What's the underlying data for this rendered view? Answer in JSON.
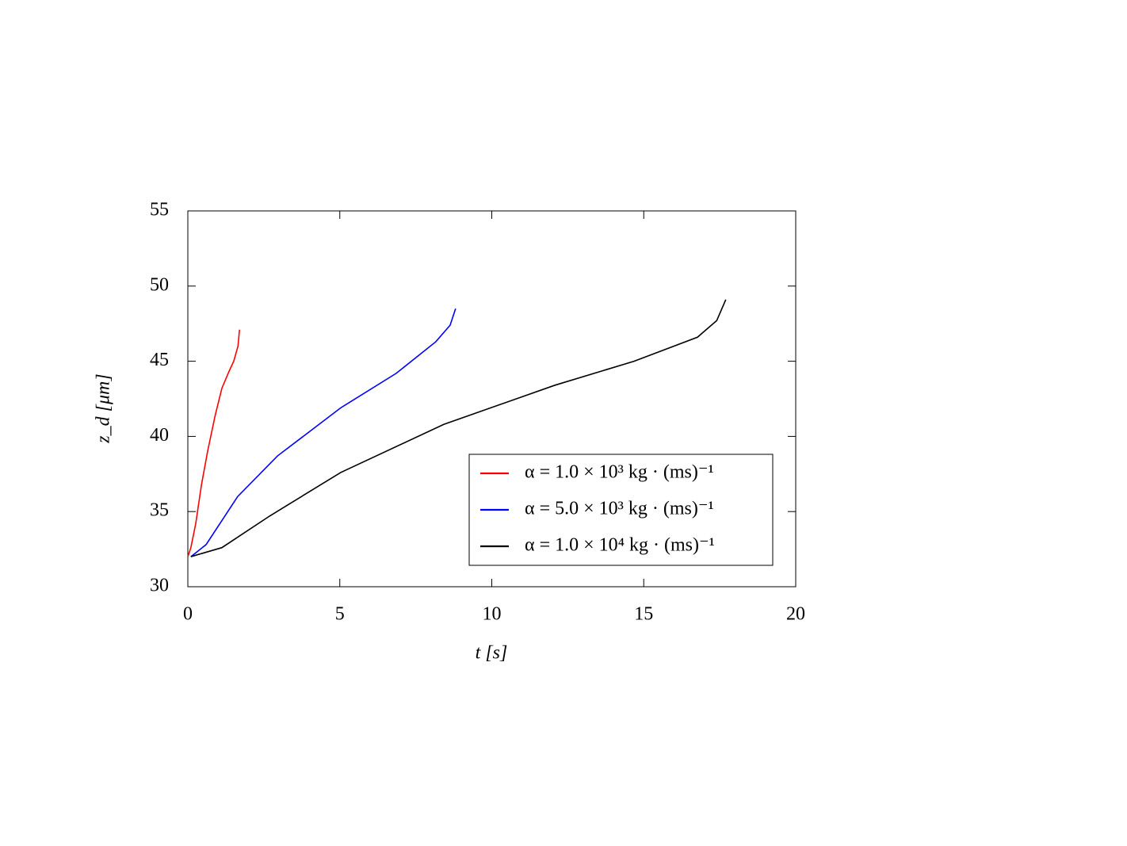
{
  "chart_data": {
    "type": "line",
    "xlabel": "t [s]",
    "ylabel": "z_d [μm]",
    "xlim": [
      0,
      20
    ],
    "xticks": [
      0,
      5,
      10,
      15,
      20
    ],
    "ylim": [
      30,
      55
    ],
    "yticks": [
      30,
      35,
      40,
      45,
      50,
      55
    ],
    "legend": "lower right",
    "series": [
      {
        "name": "α = 1.0 × 10³ kg · (ms)⁻¹",
        "color": "#ff0000",
        "x": [
          0.0,
          0.1,
          0.26,
          0.45,
          0.65,
          0.9,
          1.12,
          1.35,
          1.51,
          1.65,
          1.7
        ],
        "values": [
          32.0,
          32.6,
          34.2,
          36.8,
          39.0,
          41.4,
          43.2,
          44.3,
          45.0,
          46.0,
          47.1
        ]
      },
      {
        "name": "α = 5.0 × 10³ kg · (ms)⁻¹",
        "color": "#0000ff",
        "x": [
          0.1,
          0.6,
          1.64,
          2.95,
          5.03,
          6.86,
          8.16,
          8.63,
          8.81
        ],
        "values": [
          32.0,
          32.8,
          36.0,
          38.7,
          41.9,
          44.2,
          46.3,
          47.4,
          48.5
        ]
      },
      {
        "name": "α = 1.0 × 10⁴ kg · (ms)⁻¹",
        "color": "#000000",
        "x": [
          0.1,
          1.12,
          2.69,
          5.03,
          8.42,
          12.07,
          14.68,
          16.77,
          17.4,
          17.7
        ],
        "values": [
          32.0,
          32.6,
          34.7,
          37.6,
          40.8,
          43.4,
          45.0,
          46.6,
          47.7,
          49.1
        ]
      }
    ]
  }
}
